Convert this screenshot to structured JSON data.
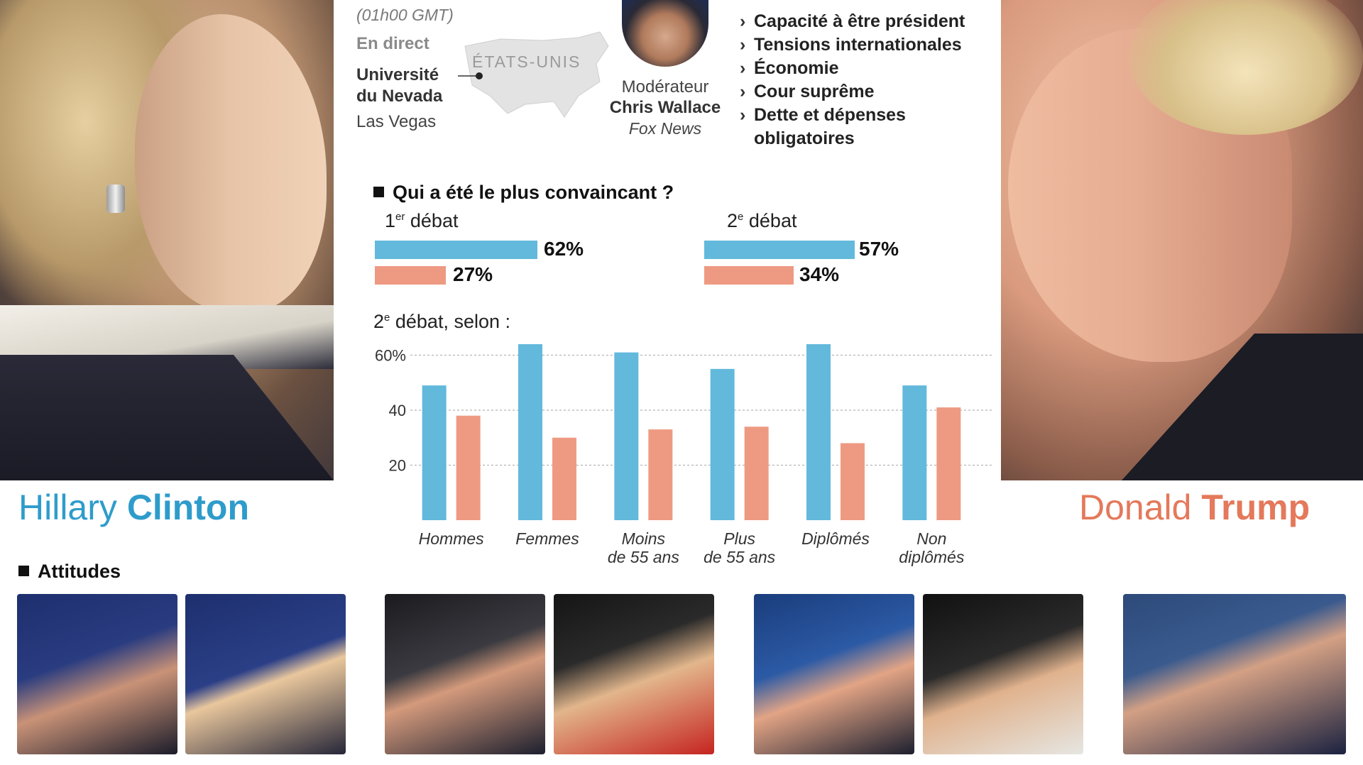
{
  "colors": {
    "clinton": "#62b9dc",
    "trump": "#ee9a83",
    "clinton_text": "#2e9ccb",
    "trump_text": "#e4795b"
  },
  "header": {
    "time_note": "(01h00 GMT)",
    "live": "En direct",
    "venue_line1": "Université",
    "venue_line2": "du Nevada",
    "city": "Las Vegas",
    "map_label": "ÉTATS-UNIS",
    "moderator_role": "Modérateur",
    "moderator_name": "Chris Wallace",
    "moderator_network": "Fox News"
  },
  "topics": [
    "Capacité à être président",
    "Tensions internationales",
    "Économie",
    "Cour suprême",
    "Dette et dépenses",
    "obligatoires"
  ],
  "candidates": {
    "clinton_first": "Hillary",
    "clinton_last": "Clinton",
    "trump_first": "Donald",
    "trump_last": "Trump"
  },
  "convincing": {
    "title": "Qui a été le plus convaincant ?",
    "debate1_num": "1",
    "debate1_sup": "er",
    "debate1_word": "débat",
    "debate2_num": "2",
    "debate2_sup": "e",
    "debate2_word": "débat",
    "d1_clinton": "62%",
    "d1_trump": "27%",
    "d2_clinton": "57%",
    "d2_trump": "34%"
  },
  "breakdown": {
    "label_num": "2",
    "label_sup": "e",
    "label_rest": " débat, selon :"
  },
  "chart_data": {
    "type": "bar",
    "categories": [
      [
        "Hommes"
      ],
      [
        "Femmes"
      ],
      [
        "Moins",
        "de 55 ans"
      ],
      [
        "Plus",
        "de 55 ans"
      ],
      [
        "Diplômés"
      ],
      [
        "Non",
        "diplômés"
      ]
    ],
    "series": [
      {
        "values": [
          49,
          64,
          61,
          55,
          64,
          49
        ],
        "color": "#62b9dc"
      },
      {
        "values": [
          38,
          30,
          33,
          34,
          28,
          41
        ],
        "color": "#ee9a83"
      }
    ],
    "ylim": [
      0,
      64
    ],
    "yticks": [
      20,
      40,
      60
    ],
    "ytick_labels": [
      "20",
      "40",
      "60%"
    ],
    "grid": true
  },
  "attitudes": {
    "title": "Attitudes"
  }
}
